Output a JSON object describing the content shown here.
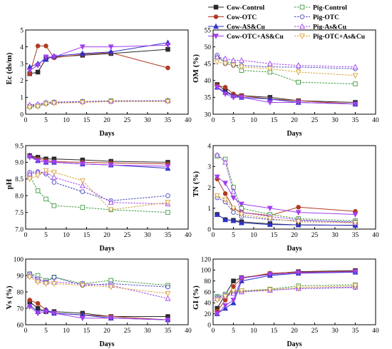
{
  "colors": {
    "Cow-Control": "#2a2a2a",
    "Cow-OTC": "#b03a24",
    "Cow-AS&Cu": "#2e33c8",
    "Cow-OTC+AS&Cu": "#a23ff0",
    "Pig-Control": "#3e9a3e",
    "Pig-OTC": "#4448b8",
    "Pig-As&Cu": "#a044ee",
    "Pig-OTC+As&Cu": "#d6a238"
  },
  "legend": {
    "items": [
      {
        "name": "Cow-Control",
        "style": "solid",
        "marker": "square-filled"
      },
      {
        "name": "Pig-Control",
        "style": "dashed",
        "marker": "square-open"
      },
      {
        "name": "Cow-OTC",
        "style": "solid",
        "marker": "circle-filled"
      },
      {
        "name": "Pig-OTC",
        "style": "dashed",
        "marker": "circle-open"
      },
      {
        "name": "Cow-AS&Cu",
        "style": "solid",
        "marker": "triangle-filled"
      },
      {
        "name": "Pig-As&Cu",
        "style": "dashed",
        "marker": "triangle-open"
      },
      {
        "name": "Cow-OTC+AS&Cu",
        "style": "solid",
        "marker": "triangle-down-filled"
      },
      {
        "name": "Pig-OTC+As&Cu",
        "style": "dashed",
        "marker": "triangle-down-open"
      }
    ]
  },
  "chart_data": [
    {
      "type": "line",
      "panel": "Ec",
      "ylabel": "Ec (ds/m)",
      "xlabel": "Days",
      "xlim": [
        0,
        40
      ],
      "ylim": [
        0,
        5
      ],
      "x": [
        1,
        3,
        5,
        7,
        14,
        21,
        35
      ],
      "series": [
        {
          "name": "Cow-Control",
          "values": [
            2.4,
            2.5,
            3.3,
            3.4,
            3.5,
            3.6,
            3.85
          ]
        },
        {
          "name": "Cow-OTC",
          "values": [
            2.4,
            4.05,
            4.05,
            3.35,
            3.55,
            3.65,
            2.75
          ]
        },
        {
          "name": "Cow-AS&Cu",
          "values": [
            2.8,
            3.0,
            3.25,
            3.45,
            3.6,
            3.7,
            4.25
          ]
        },
        {
          "name": "Cow-OTC+AS&Cu",
          "values": [
            2.6,
            2.9,
            3.4,
            3.4,
            4.0,
            4.0,
            4.1
          ]
        },
        {
          "name": "Pig-Control",
          "values": [
            0.45,
            0.5,
            0.65,
            0.7,
            0.75,
            0.8,
            0.8
          ]
        },
        {
          "name": "Pig-OTC",
          "values": [
            0.5,
            0.55,
            0.65,
            0.7,
            0.72,
            0.75,
            0.78
          ]
        },
        {
          "name": "Pig-As&Cu",
          "values": [
            0.55,
            0.6,
            0.7,
            0.72,
            0.75,
            0.78,
            0.8
          ]
        },
        {
          "name": "Pig-OTC+As&Cu",
          "values": [
            0.4,
            0.45,
            0.6,
            0.65,
            0.7,
            0.75,
            0.75
          ]
        }
      ]
    },
    {
      "type": "line",
      "panel": "OM",
      "ylabel": "OM (%)",
      "xlabel": "Days",
      "xlim": [
        0,
        40
      ],
      "ylim": [
        30,
        55
      ],
      "x": [
        1,
        3,
        5,
        7,
        14,
        21,
        35
      ],
      "series": [
        {
          "name": "Cow-Control",
          "values": [
            38.8,
            37.0,
            35.5,
            35.5,
            35.0,
            34.0,
            33.5
          ]
        },
        {
          "name": "Cow-OTC",
          "values": [
            38.5,
            38.0,
            36.0,
            35.5,
            34.5,
            34.0,
            33.0
          ]
        },
        {
          "name": "Cow-AS&Cu",
          "values": [
            38.0,
            36.5,
            35.5,
            35.0,
            34.5,
            33.5,
            33.0
          ]
        },
        {
          "name": "Cow-OTC+AS&Cu",
          "values": [
            38.0,
            36.0,
            35.0,
            35.0,
            33.5,
            33.5,
            33.0
          ]
        },
        {
          "name": "Pig-Control",
          "values": [
            47.0,
            45.5,
            45.0,
            43.0,
            42.5,
            39.5,
            39.0
          ]
        },
        {
          "name": "Pig-OTC",
          "values": [
            47.5,
            45.0,
            44.5,
            44.5,
            44.0,
            44.0,
            43.5
          ]
        },
        {
          "name": "Pig-As&Cu",
          "values": [
            47.0,
            46.5,
            46.0,
            46.0,
            45.0,
            44.5,
            44.0
          ]
        },
        {
          "name": "Pig-OTC+As&Cu",
          "values": [
            45.5,
            45.0,
            44.5,
            44.0,
            43.5,
            42.5,
            41.5
          ]
        }
      ]
    },
    {
      "type": "line",
      "panel": "pH",
      "ylabel": "pH",
      "xlabel": "Days",
      "xlim": [
        0,
        40
      ],
      "ylim": [
        7.0,
        9.5
      ],
      "x": [
        1,
        3,
        5,
        7,
        14,
        21,
        35
      ],
      "series": [
        {
          "name": "Cow-Control",
          "values": [
            9.2,
            9.15,
            9.1,
            9.1,
            9.07,
            9.03,
            9.0
          ]
        },
        {
          "name": "Cow-OTC",
          "values": [
            9.2,
            9.1,
            9.05,
            9.02,
            9.0,
            8.98,
            8.95
          ]
        },
        {
          "name": "Cow-AS&Cu",
          "values": [
            9.2,
            9.05,
            9.0,
            9.0,
            8.95,
            8.92,
            8.82
          ]
        },
        {
          "name": "Cow-OTC+AS&Cu",
          "values": [
            9.15,
            9.05,
            9.0,
            9.0,
            8.95,
            8.92,
            8.88
          ]
        },
        {
          "name": "Pig-Control",
          "values": [
            8.6,
            8.15,
            7.9,
            7.7,
            7.65,
            7.58,
            7.5
          ]
        },
        {
          "name": "Pig-OTC",
          "values": [
            8.7,
            8.72,
            8.65,
            8.4,
            8.12,
            7.85,
            8.0
          ]
        },
        {
          "name": "Pig-As&Cu",
          "values": [
            8.65,
            8.7,
            8.7,
            8.55,
            8.3,
            7.8,
            7.75
          ]
        },
        {
          "name": "Pig-OTC+As&Cu",
          "values": [
            8.5,
            8.6,
            8.75,
            8.7,
            8.45,
            7.58,
            7.8
          ]
        }
      ]
    },
    {
      "type": "line",
      "panel": "TN",
      "ylabel": "TN (%)",
      "xlabel": "Days",
      "xlim": [
        0,
        40
      ],
      "ylim": [
        0,
        4
      ],
      "x": [
        1,
        3,
        5,
        7,
        14,
        21,
        35
      ],
      "series": [
        {
          "name": "Cow-Control",
          "values": [
            0.7,
            0.45,
            0.42,
            0.35,
            0.25,
            0.2,
            0.18
          ]
        },
        {
          "name": "Cow-OTC",
          "values": [
            2.4,
            1.7,
            1.0,
            0.8,
            0.65,
            1.05,
            0.85
          ]
        },
        {
          "name": "Cow-AS&Cu",
          "values": [
            0.7,
            0.45,
            0.4,
            0.3,
            0.22,
            0.2,
            0.18
          ]
        },
        {
          "name": "Cow-OTC+AS&Cu",
          "values": [
            2.5,
            2.2,
            1.5,
            1.2,
            1.0,
            0.8,
            0.7
          ]
        },
        {
          "name": "Pig-Control",
          "values": [
            3.5,
            3.35,
            2.0,
            1.0,
            0.7,
            0.5,
            0.4
          ]
        },
        {
          "name": "Pig-OTC",
          "values": [
            1.5,
            1.3,
            0.8,
            0.6,
            0.45,
            0.4,
            0.35
          ]
        },
        {
          "name": "Pig-As&Cu",
          "values": [
            3.55,
            3.2,
            1.8,
            0.8,
            0.6,
            0.45,
            0.3
          ]
        },
        {
          "name": "Pig-OTC+As&Cu",
          "values": [
            1.6,
            1.4,
            1.0,
            0.7,
            0.5,
            0.35,
            0.3
          ]
        }
      ]
    },
    {
      "type": "line",
      "panel": "Vs",
      "ylabel": "Vs (%)",
      "xlabel": "Days",
      "xlim": [
        0,
        40
      ],
      "ylim": [
        60,
        100
      ],
      "x": [
        1,
        3,
        5,
        7,
        14,
        21,
        35
      ],
      "series": [
        {
          "name": "Cow-Control",
          "values": [
            74,
            70,
            68,
            68,
            67,
            65,
            65
          ]
        },
        {
          "name": "Cow-OTC",
          "values": [
            75,
            73,
            69,
            67,
            66,
            65,
            63
          ]
        },
        {
          "name": "Cow-AS&Cu",
          "values": [
            72,
            68,
            69,
            67,
            66,
            64,
            63
          ]
        },
        {
          "name": "Cow-OTC+AS&Cu",
          "values": [
            71,
            67,
            68,
            67,
            64,
            64,
            63
          ]
        },
        {
          "name": "Pig-Control",
          "values": [
            91,
            90,
            87,
            89,
            85,
            87,
            84
          ]
        },
        {
          "name": "Pig-OTC",
          "values": [
            91,
            88,
            86,
            89,
            84,
            85,
            83
          ]
        },
        {
          "name": "Pig-As&Cu",
          "values": [
            90,
            87,
            86,
            86,
            85,
            84,
            76
          ]
        },
        {
          "name": "Pig-OTC+As&Cu",
          "values": [
            89,
            86,
            85,
            85,
            84,
            83,
            79
          ]
        }
      ]
    },
    {
      "type": "line",
      "panel": "GI",
      "ylabel": "GI (%)",
      "xlabel": "Days",
      "xlim": [
        0,
        40
      ],
      "ylim": [
        0,
        120
      ],
      "x": [
        1,
        3,
        5,
        7,
        14,
        21,
        35
      ],
      "series": [
        {
          "name": "Cow-Control",
          "values": [
            30,
            55,
            80,
            86,
            93,
            97,
            99
          ]
        },
        {
          "name": "Cow-OTC",
          "values": [
            25,
            45,
            70,
            85,
            94,
            96,
            98
          ]
        },
        {
          "name": "Cow-AS&Cu",
          "values": [
            20,
            30,
            40,
            80,
            90,
            94,
            96
          ]
        },
        {
          "name": "Cow-OTC+AS&Cu",
          "values": [
            20,
            35,
            45,
            85,
            92,
            95,
            97
          ]
        },
        {
          "name": "Pig-Control",
          "values": [
            52,
            56,
            60,
            62,
            65,
            71,
            73
          ]
        },
        {
          "name": "Pig-OTC",
          "values": [
            50,
            54,
            58,
            60,
            63,
            66,
            68
          ]
        },
        {
          "name": "Pig-As&Cu",
          "values": [
            48,
            52,
            57,
            60,
            63,
            66,
            69
          ]
        },
        {
          "name": "Pig-OTC+As&Cu",
          "values": [
            45,
            52,
            62,
            62,
            64,
            68,
            71
          ]
        }
      ]
    }
  ]
}
